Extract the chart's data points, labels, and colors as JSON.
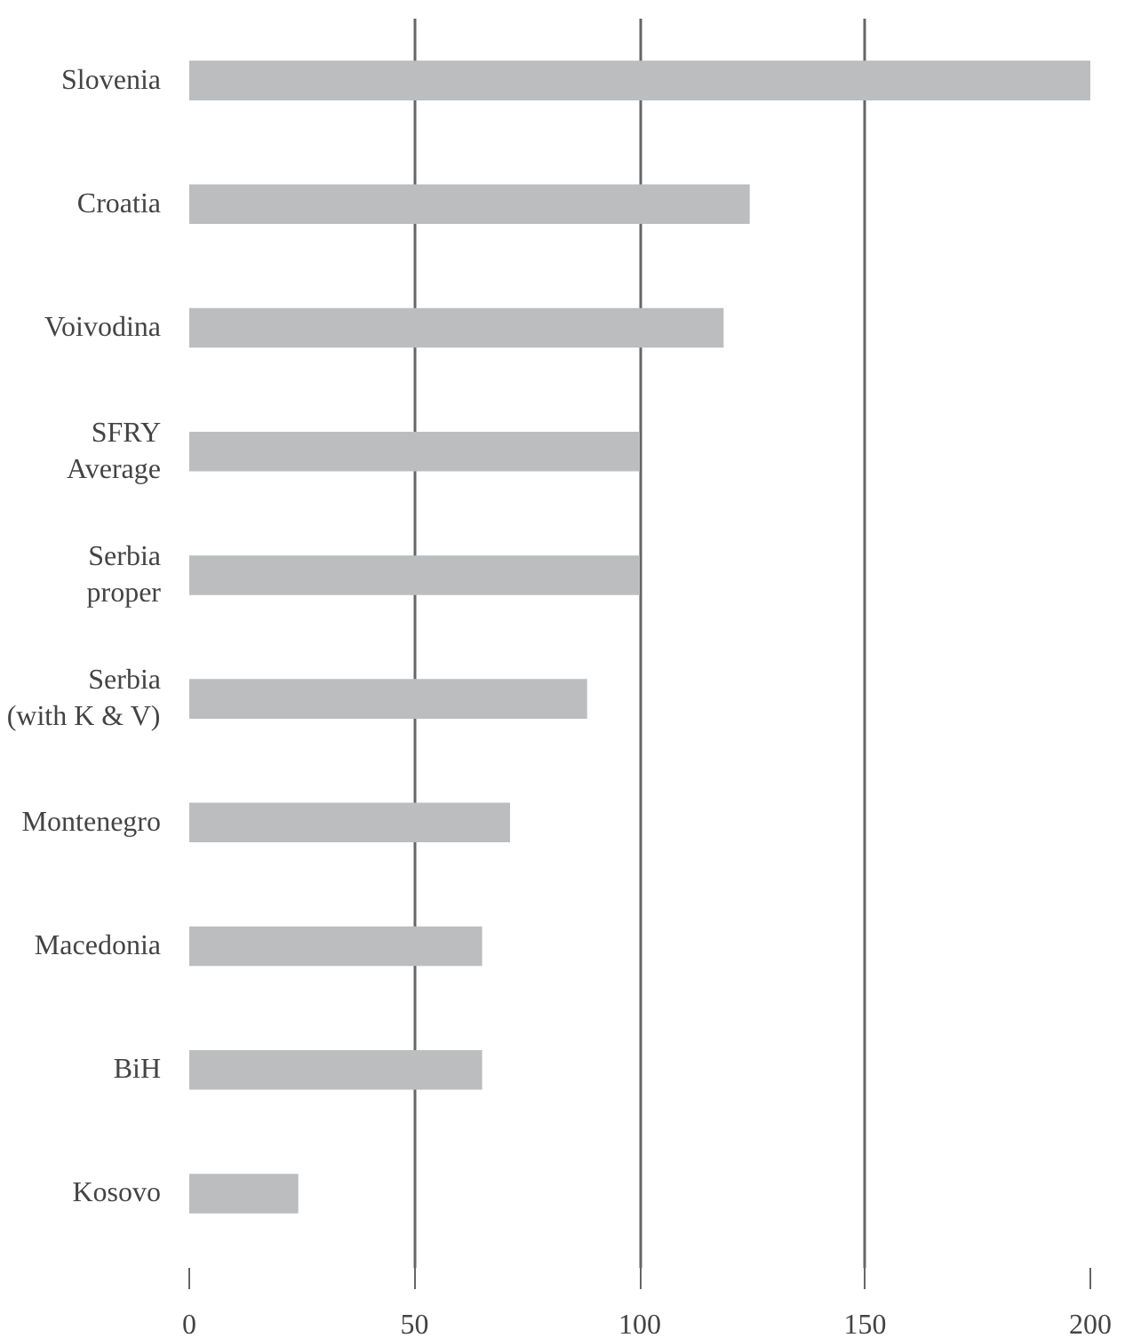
{
  "chart_data": {
    "type": "bar",
    "orientation": "horizontal",
    "categories": [
      "Slovenia",
      "Croatia",
      "Voivodina",
      "SFRY Average",
      "Serbia proper",
      "Serbia (with K & V)",
      "Montenegro",
      "Macedonia",
      "BiH",
      "Kosovo"
    ],
    "values": [
      200,
      124.4,
      118.6,
      100,
      100,
      88.3,
      71.2,
      65,
      65,
      24.2
    ],
    "color": "#bcbdbf",
    "xlim": [
      0,
      200
    ],
    "xticks": [
      0,
      50,
      100,
      150,
      200
    ],
    "grid": "x"
  }
}
